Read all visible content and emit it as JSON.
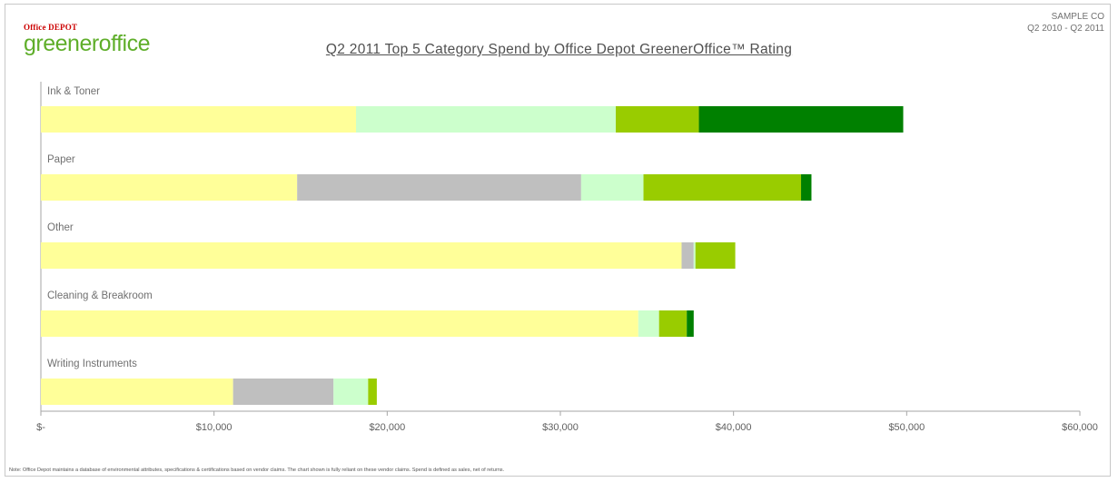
{
  "logo": {
    "top": "Office DEPOT",
    "main": "greeneroffice"
  },
  "header": {
    "title": "Q2 2011 Top 5 Category Spend by Office Depot GreenerOffice™ Rating",
    "company": "SAMPLE CO",
    "period": "Q2 2010 - Q2 2011"
  },
  "note": "Note: Office Depot maintains a database of environmental attributes, specifications & certifications based on vendor claims. The chart shown is fully reliant on these vendor claims. Spend is defined as sales, net of returns.",
  "colors": {
    "pale_yellow": "#ffff99",
    "gray": "#bfbfbf",
    "mint": "#ccffcc",
    "lime": "#99cc00",
    "dark_green": "#008000"
  },
  "chart_data": {
    "type": "bar",
    "orientation": "horizontal",
    "stacked": true,
    "title": "Q2 2011 Top 5 Category Spend by Office Depot GreenerOffice™ Rating",
    "categories": [
      "Ink & Toner",
      "Paper",
      "Other",
      "Cleaning & Breakroom",
      "Writing Instruments"
    ],
    "series": [
      {
        "color": "#ffff99",
        "values": [
          18200,
          14800,
          37000,
          34500,
          11100
        ]
      },
      {
        "color": "#bfbfbf",
        "values": [
          0,
          16400,
          700,
          0,
          5800
        ]
      },
      {
        "color": "#ccffcc",
        "values": [
          15000,
          3600,
          100,
          1200,
          2000
        ]
      },
      {
        "color": "#99cc00",
        "values": [
          4800,
          9100,
          2300,
          1600,
          500
        ]
      },
      {
        "color": "#008000",
        "values": [
          11800,
          600,
          0,
          400,
          0
        ]
      }
    ],
    "xlim": [
      0,
      60000
    ],
    "xticks": [
      0,
      10000,
      20000,
      30000,
      40000,
      50000,
      60000
    ],
    "xtick_labels": [
      "$-",
      "$10,000",
      "$20,000",
      "$30,000",
      "$40,000",
      "$50,000",
      "$60,000"
    ],
    "grid": false,
    "legend": "none"
  }
}
